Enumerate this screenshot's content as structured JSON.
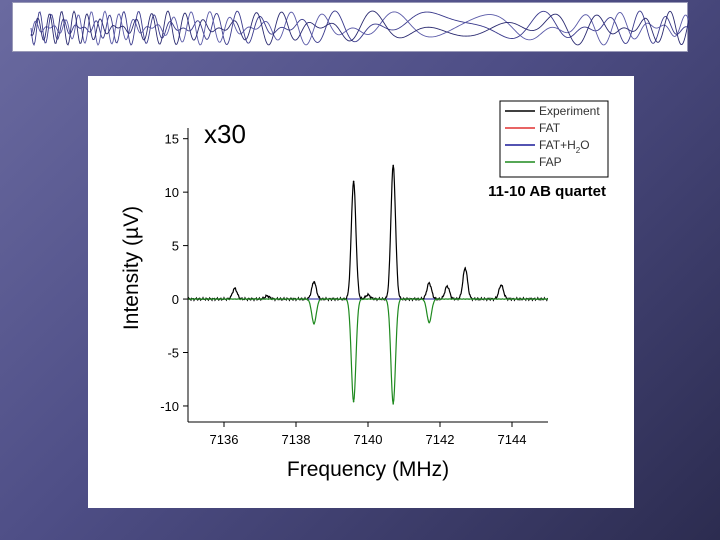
{
  "chart_data": {
    "type": "line",
    "xlabel": "Frequency (MHz)",
    "ylabel": "Intensity (µV)",
    "xlim": [
      7135.0,
      7145.0
    ],
    "ylim": [
      -11.5,
      16
    ],
    "x_ticks": [
      7136,
      7138,
      7140,
      7142,
      7144
    ],
    "y_ticks": [
      15,
      10,
      5,
      0,
      -5,
      -10
    ],
    "annotations": [
      "x30",
      "11-10 AB quartet"
    ],
    "legend": {
      "placement": "top-right",
      "entries": [
        {
          "label": "Experiment",
          "color": "#000000"
        },
        {
          "label": "FAT",
          "color": "#e03030"
        },
        {
          "label": "FAT+H2O",
          "color": "#1a1a99"
        },
        {
          "label": "FAP",
          "color": "#1f8a1f"
        }
      ]
    },
    "series": [
      {
        "name": "Experiment",
        "color": "#000000",
        "peaks": [
          {
            "x": 7136.3,
            "y": 1.0
          },
          {
            "x": 7137.2,
            "y": 0.3
          },
          {
            "x": 7138.5,
            "y": 1.6
          },
          {
            "x": 7139.6,
            "y": 11.0
          },
          {
            "x": 7140.0,
            "y": 0.4
          },
          {
            "x": 7140.7,
            "y": 12.5
          },
          {
            "x": 7141.7,
            "y": 1.5
          },
          {
            "x": 7142.2,
            "y": 1.2
          },
          {
            "x": 7142.7,
            "y": 2.9
          },
          {
            "x": 7143.7,
            "y": 1.3
          }
        ]
      },
      {
        "name": "FAP",
        "color": "#1f8a1f",
        "peaks": [
          {
            "x": 7138.5,
            "y": -2.3
          },
          {
            "x": 7139.6,
            "y": -9.6
          },
          {
            "x": 7140.7,
            "y": -9.8
          },
          {
            "x": 7141.7,
            "y": -2.2
          }
        ]
      }
    ]
  }
}
